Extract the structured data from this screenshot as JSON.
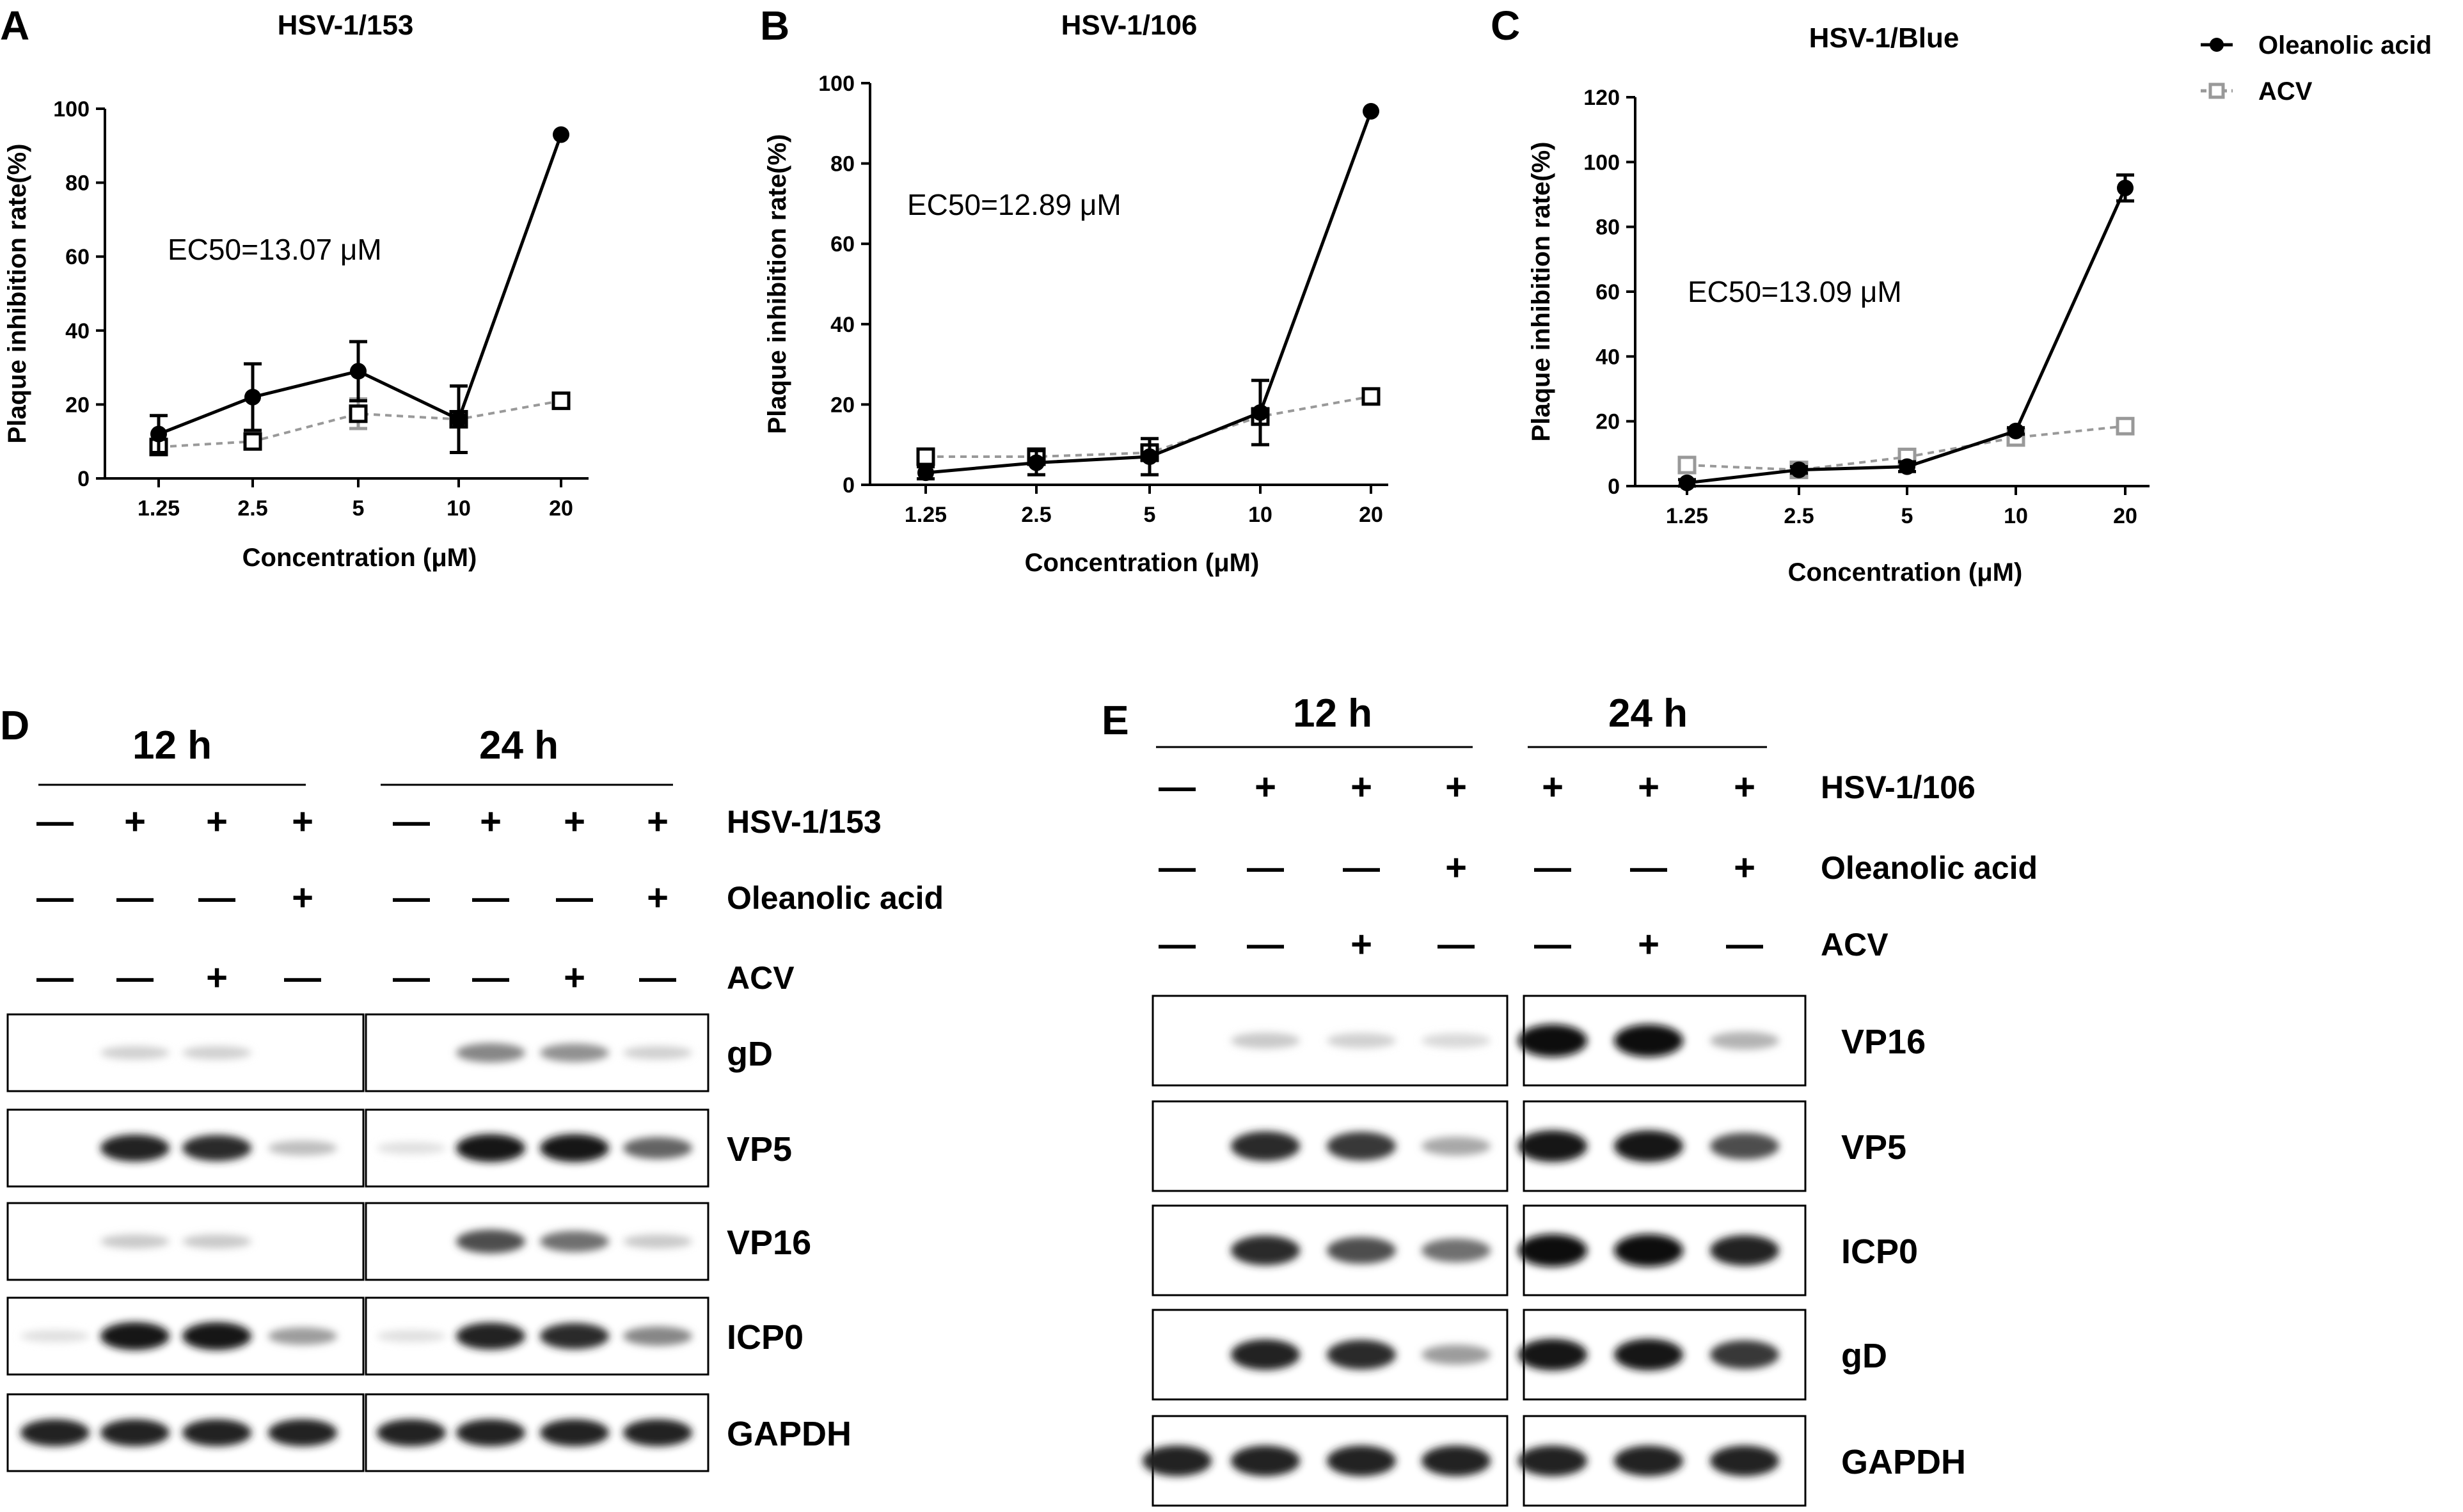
{
  "chart_data": [
    {
      "panel": "A",
      "type": "line",
      "title": "HSV-1/153",
      "xlabel": "Concentration (μM)",
      "ylabel": "Plaque inhibition rate(%)",
      "categories": [
        "1.25",
        "2.5",
        "5",
        "10",
        "20"
      ],
      "ylim": [
        0,
        100
      ],
      "yticks": [
        0,
        20,
        40,
        60,
        80,
        100
      ],
      "annotation": "EC50=13.07 μM",
      "series": [
        {
          "name": "Oleanolic acid",
          "values": [
            12,
            22,
            29,
            16,
            93
          ],
          "error": [
            5,
            9,
            8,
            9,
            0
          ]
        },
        {
          "name": "ACV",
          "values": [
            8.5,
            10,
            17.5,
            16,
            21
          ],
          "error": [
            1.5,
            1.5,
            4,
            2,
            1
          ]
        }
      ]
    },
    {
      "panel": "B",
      "type": "line",
      "title": "HSV-1/106",
      "xlabel": "Concentration (μM)",
      "ylabel": "Plaque inhibition rate(%)",
      "categories": [
        "1.25",
        "2.5",
        "5",
        "10",
        "20"
      ],
      "ylim": [
        0,
        100
      ],
      "yticks": [
        0,
        20,
        40,
        60,
        80,
        100
      ],
      "annotation": "EC50=12.89 μM",
      "series": [
        {
          "name": "Oleanolic acid",
          "values": [
            3,
            5.5,
            7,
            18,
            93
          ],
          "error": [
            1.5,
            3,
            4.5,
            8,
            0
          ]
        },
        {
          "name": "ACV",
          "values": [
            7,
            7,
            8,
            17,
            22
          ],
          "error": [
            1.5,
            1.5,
            2,
            2,
            1
          ]
        }
      ]
    },
    {
      "panel": "C",
      "type": "line",
      "title": "HSV-1/Blue",
      "xlabel": "Concentration (μM)",
      "ylabel": "Plaque inhibition rate(%)",
      "categories": [
        "1.25",
        "2.5",
        "5",
        "10",
        "20"
      ],
      "ylim": [
        0,
        120
      ],
      "yticks": [
        0,
        20,
        40,
        60,
        80,
        100,
        120
      ],
      "annotation": "EC50=13.09 μM",
      "series": [
        {
          "name": "Oleanolic acid",
          "values": [
            1,
            5,
            6,
            17,
            92
          ],
          "error": [
            1,
            1,
            1.5,
            1,
            4
          ]
        },
        {
          "name": "ACV",
          "values": [
            6.5,
            5,
            9,
            15,
            18.5
          ],
          "error": [
            1,
            1,
            1,
            1,
            1.5
          ]
        }
      ]
    }
  ],
  "legend": {
    "entries": [
      "Oleanolic acid",
      "ACV"
    ],
    "placement": "top-right"
  },
  "western_blots": [
    {
      "panel": "D",
      "groups": [
        "12 h",
        "24 h"
      ],
      "conditions": [
        {
          "label": "HSV-1/153",
          "signs": [
            "—",
            "+",
            "+",
            "+",
            "—",
            "+",
            "+",
            "+"
          ]
        },
        {
          "label": "Oleanolic acid",
          "signs": [
            "—",
            "—",
            "—",
            "+",
            "—",
            "—",
            "—",
            "+"
          ]
        },
        {
          "label": "ACV",
          "signs": [
            "—",
            "—",
            "+",
            "—",
            "—",
            "—",
            "+",
            "—"
          ]
        }
      ],
      "proteins": [
        {
          "name": "gD",
          "intensity": [
            0,
            0.12,
            0.12,
            0,
            0,
            0.45,
            0.4,
            0.12
          ]
        },
        {
          "name": "VP5",
          "intensity": [
            0,
            0.9,
            0.85,
            0.2,
            0.05,
            0.95,
            0.95,
            0.6
          ]
        },
        {
          "name": "VP16",
          "intensity": [
            0,
            0.15,
            0.15,
            0,
            0,
            0.7,
            0.55,
            0.15
          ]
        },
        {
          "name": "ICP0",
          "intensity": [
            0.05,
            0.95,
            0.95,
            0.35,
            0.05,
            0.9,
            0.85,
            0.45
          ]
        },
        {
          "name": "GAPDH",
          "intensity": [
            0.9,
            0.9,
            0.9,
            0.9,
            0.9,
            0.9,
            0.9,
            0.9
          ]
        }
      ]
    },
    {
      "panel": "E",
      "groups": [
        "12 h",
        "24 h"
      ],
      "conditions": [
        {
          "label": "HSV-1/106",
          "signs": [
            "—",
            "+",
            "+",
            "+",
            "+",
            "+",
            "+"
          ]
        },
        {
          "label": "Oleanolic acid",
          "signs": [
            "—",
            "—",
            "—",
            "+",
            "—",
            "—",
            "+"
          ]
        },
        {
          "label": "ACV",
          "signs": [
            "—",
            "—",
            "+",
            "—",
            "—",
            "+",
            "—"
          ]
        }
      ],
      "proteins": [
        {
          "name": "VP16",
          "intensity": [
            0,
            0.15,
            0.12,
            0.08,
            1,
            1,
            0.25
          ]
        },
        {
          "name": "VP5",
          "intensity": [
            0,
            0.85,
            0.8,
            0.3,
            0.95,
            0.95,
            0.7
          ]
        },
        {
          "name": "ICP0",
          "intensity": [
            0,
            0.85,
            0.7,
            0.55,
            1,
            1,
            0.9
          ]
        },
        {
          "name": "gD",
          "intensity": [
            0,
            0.9,
            0.85,
            0.35,
            0.95,
            0.95,
            0.8
          ]
        },
        {
          "name": "GAPDH",
          "intensity": [
            0.9,
            0.9,
            0.9,
            0.9,
            0.9,
            0.9,
            0.9
          ]
        }
      ]
    }
  ],
  "colors": {
    "oleanolic": "#000000",
    "acv": "#999999"
  }
}
